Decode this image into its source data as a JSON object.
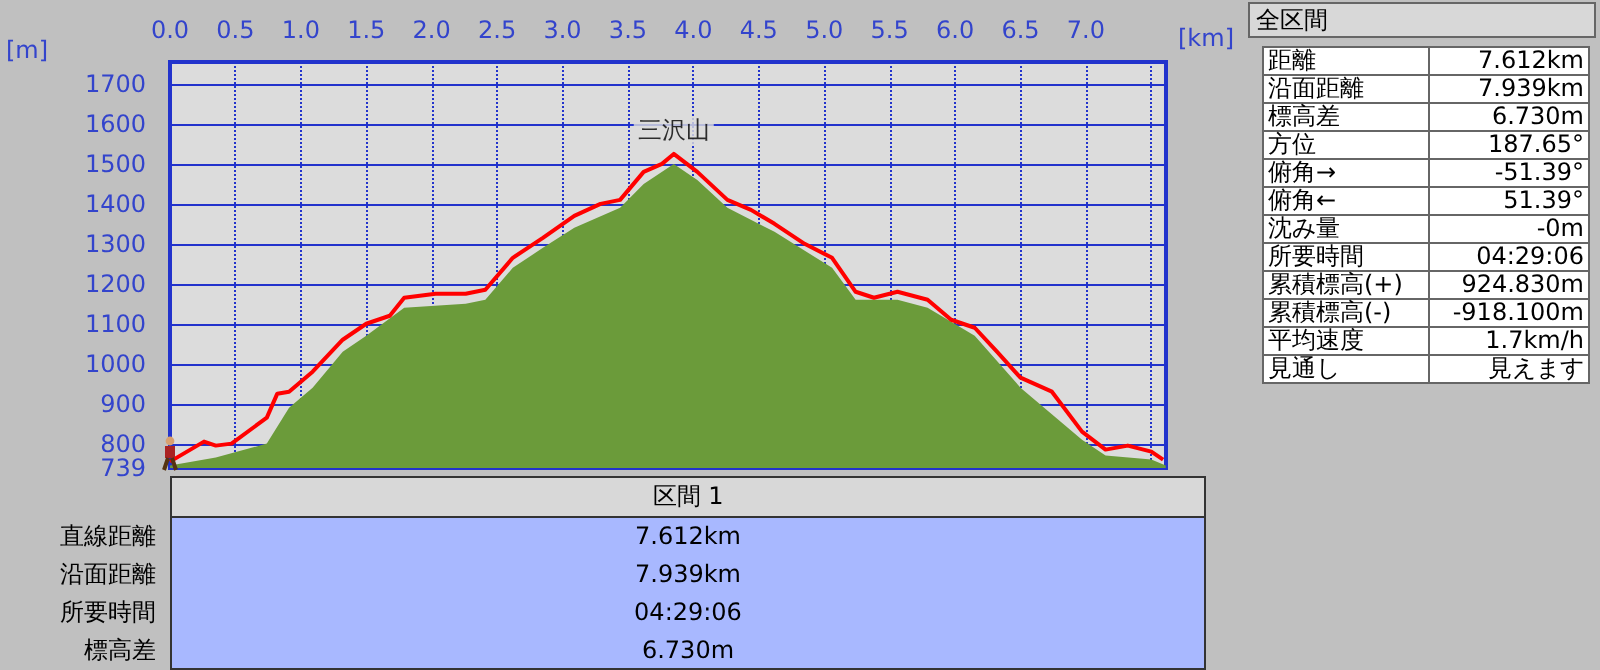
{
  "chart_data": [
    {
      "type": "line",
      "xlabel": "[km]",
      "ylabel": "[m]",
      "xlim": [
        0,
        7.612
      ],
      "ylim": [
        739,
        1755
      ],
      "xticks": [
        {
          "value": 0,
          "label": "0.0"
        },
        0.5,
        {
          "value": 1,
          "label": "1.0"
        },
        1.5,
        {
          "value": 2,
          "label": "2.0"
        },
        2.5,
        {
          "value": 3,
          "label": "3.0"
        },
        3.5,
        {
          "value": 4,
          "label": "4.0"
        },
        4.5,
        {
          "value": 5,
          "label": "5.0"
        },
        5.5,
        {
          "value": 6,
          "label": "6.0"
        },
        6.5,
        {
          "value": 7,
          "label": "7.0"
        },
        {
          "value": 7.5,
          "label": null
        }
      ],
      "yticks": [
        739,
        800,
        900,
        1000,
        1100,
        1200,
        1300,
        1400,
        1500,
        1600,
        1700
      ],
      "grid": true,
      "marker": "none",
      "series": [
        {
          "type": "area",
          "color": "#6b9b3a",
          "x": [
            0,
            0.35,
            0.74,
            0.91,
            1.09,
            1.32,
            1.5,
            1.79,
            2.26,
            2.41,
            2.62,
            2.85,
            3.09,
            3.44,
            3.62,
            3.85,
            4.03,
            4.26,
            4.62,
            5.06,
            5.24,
            5.56,
            5.79,
            6.15,
            6.5,
            6.97,
            7.15,
            7.5,
            7.61
          ],
          "values": [
            745,
            765,
            800,
            890,
            940,
            1030,
            1070,
            1140,
            1150,
            1160,
            1240,
            1290,
            1340,
            1390,
            1450,
            1500,
            1460,
            1390,
            1330,
            1240,
            1160,
            1160,
            1140,
            1070,
            940,
            810,
            770,
            760,
            745
          ]
        },
        {
          "type": "line",
          "color": "#ff0000",
          "x": [
            0,
            0.26,
            0.35,
            0.47,
            0.74,
            0.82,
            0.91,
            1.09,
            1.32,
            1.5,
            1.68,
            1.79,
            2.03,
            2.26,
            2.41,
            2.62,
            2.85,
            3.09,
            3.29,
            3.44,
            3.62,
            3.76,
            3.85,
            4.03,
            4.26,
            4.44,
            4.62,
            4.85,
            5.06,
            5.24,
            5.38,
            5.56,
            5.79,
            5.97,
            6.15,
            6.32,
            6.5,
            6.74,
            6.97,
            7.15,
            7.32,
            7.5,
            7.59
          ],
          "values": [
            755,
            805,
            795,
            800,
            865,
            925,
            930,
            980,
            1060,
            1100,
            1120,
            1165,
            1175,
            1175,
            1185,
            1265,
            1315,
            1370,
            1400,
            1410,
            1480,
            1500,
            1525,
            1480,
            1410,
            1385,
            1350,
            1300,
            1265,
            1180,
            1165,
            1180,
            1160,
            1110,
            1090,
            1030,
            965,
            930,
            830,
            785,
            795,
            780,
            760
          ]
        }
      ],
      "annotations": [
        {
          "text": "三沢山",
          "x": 3.85,
          "y": 1525
        }
      ]
    },
    {
      "type": "other",
      "title": "全区間",
      "annotations": [
        "距離",
        "7.612km",
        "沿面距離",
        "7.939km",
        "標高差",
        "6.730m",
        "方位",
        "187.65°",
        "俯角→",
        "-51.39°",
        "俯角←",
        "51.39°",
        "沈み量",
        "-0m",
        "所要時間",
        "04:29:06",
        "累積標高(+)",
        "924.830m",
        "累積標高(-)",
        "-918.100m",
        "平均速度",
        "1.7km/h",
        "見通し",
        "見えます"
      ]
    },
    {
      "type": "other",
      "title": "区間 1",
      "annotations": [
        "直線距離",
        "7.612km",
        "沿面距離",
        "7.939km",
        "所要時間",
        "04:29:06",
        "標高差",
        "6.730m"
      ]
    }
  ]
}
